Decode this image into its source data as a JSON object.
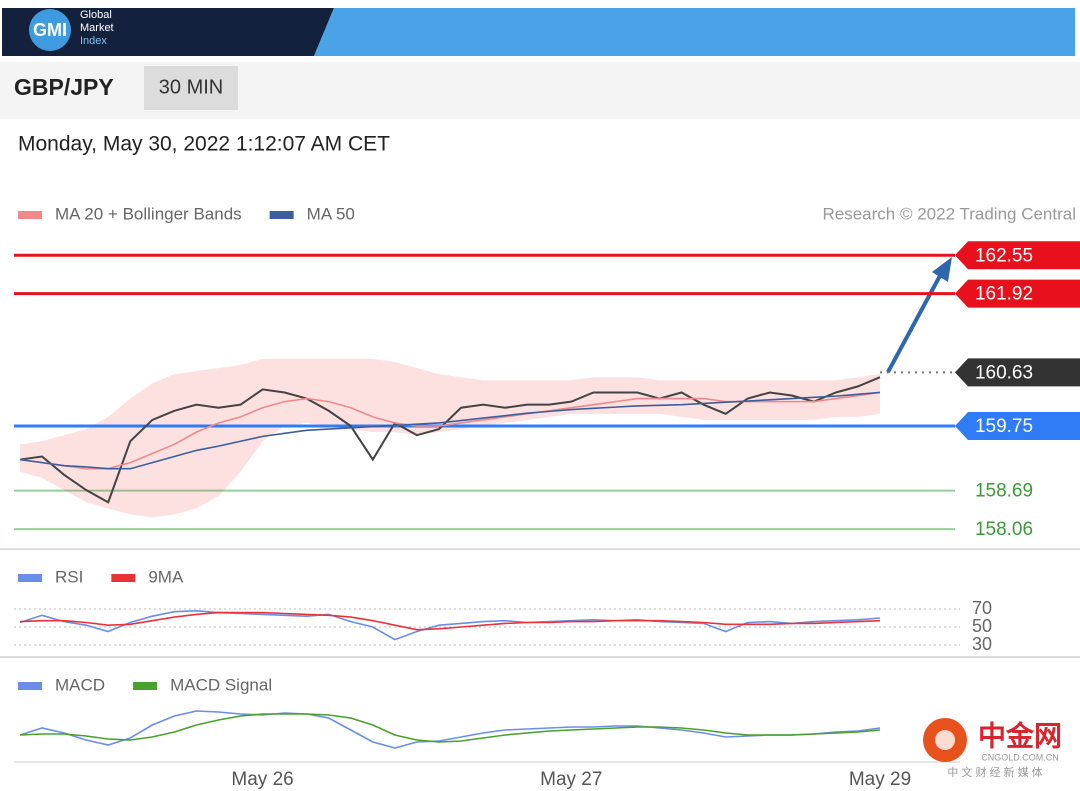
{
  "header": {
    "logo": "GMI",
    "brand": [
      "Global",
      "Market",
      "Index"
    ]
  },
  "toolbar": {
    "symbol": "GBP/JPY",
    "interval": "30 MIN"
  },
  "timestamp": "Monday, May 30, 2022 1:12:07 AM CET",
  "watermark": {
    "name": "中金网",
    "site": "CNGOLD.COM.CN",
    "tagline": "中 文 财 经 新 媒 体"
  },
  "chart_data": [
    {
      "type": "line",
      "source": "Research © 2022 Trading Central",
      "ylim": [
        157.75,
        162.8
      ],
      "price": {
        "color": "#444444",
        "values": [
          159.2,
          159.25,
          158.95,
          158.7,
          158.5,
          159.5,
          159.85,
          160.0,
          160.1,
          160.05,
          160.1,
          160.35,
          160.3,
          160.2,
          160.0,
          159.75,
          159.2,
          159.8,
          159.6,
          159.7,
          160.05,
          160.1,
          160.05,
          160.1,
          160.1,
          160.15,
          160.3,
          160.3,
          160.3,
          160.2,
          160.3,
          160.1,
          159.95,
          160.2,
          160.3,
          160.25,
          160.15,
          160.3,
          160.4,
          160.55
        ]
      },
      "series": [
        {
          "name": "MA 20 + Bollinger Bands",
          "color": "#f08a8a",
          "band_color": "#fde0e0",
          "values": [
            159.2,
            159.15,
            159.1,
            159.05,
            159.05,
            159.15,
            159.3,
            159.45,
            159.65,
            159.8,
            159.9,
            160.05,
            160.15,
            160.2,
            160.15,
            160.05,
            159.9,
            159.8,
            159.75,
            159.75,
            159.8,
            159.85,
            159.9,
            159.95,
            160.0,
            160.05,
            160.1,
            160.15,
            160.2,
            160.2,
            160.2,
            160.2,
            160.15,
            160.15,
            160.15,
            160.15,
            160.15,
            160.2,
            160.25,
            160.3
          ],
          "upper": [
            159.45,
            159.5,
            159.6,
            159.7,
            159.9,
            160.2,
            160.45,
            160.6,
            160.65,
            160.7,
            160.75,
            160.85,
            160.85,
            160.85,
            160.85,
            160.85,
            160.85,
            160.8,
            160.7,
            160.6,
            160.55,
            160.5,
            160.5,
            160.5,
            160.5,
            160.5,
            160.55,
            160.55,
            160.55,
            160.5,
            160.5,
            160.5,
            160.5,
            160.5,
            160.5,
            160.5,
            160.5,
            160.5,
            160.55,
            160.6
          ],
          "lower": [
            159.0,
            158.9,
            158.7,
            158.5,
            158.4,
            158.3,
            158.25,
            158.3,
            158.4,
            158.6,
            159.0,
            159.5,
            159.75,
            159.8,
            159.75,
            159.7,
            159.65,
            159.65,
            159.6,
            159.65,
            159.7,
            159.75,
            159.8,
            159.85,
            159.9,
            159.95,
            159.95,
            159.95,
            159.95,
            159.95,
            159.9,
            159.85,
            159.85,
            159.85,
            159.85,
            159.85,
            159.85,
            159.9,
            159.9,
            159.95
          ]
        },
        {
          "name": "MA 50",
          "color": "#3b5f9e",
          "values": [
            159.2,
            159.15,
            159.1,
            159.08,
            159.05,
            159.05,
            159.15,
            159.25,
            159.35,
            159.42,
            159.5,
            159.58,
            159.63,
            159.68,
            159.7,
            159.72,
            159.74,
            159.76,
            159.78,
            159.8,
            159.84,
            159.88,
            159.92,
            159.96,
            159.99,
            160.02,
            160.04,
            160.06,
            160.08,
            160.09,
            160.1,
            160.12,
            160.14,
            160.16,
            160.18,
            160.2,
            160.22,
            160.24,
            160.27,
            160.3
          ]
        }
      ],
      "levels": [
        {
          "value": 162.55,
          "color": "#e8101c",
          "kind": "box",
          "line": "solid"
        },
        {
          "value": 161.92,
          "color": "#e8101c",
          "kind": "box",
          "line": "solid"
        },
        {
          "value": 160.63,
          "color": "#333333",
          "kind": "box",
          "line": "dotted"
        },
        {
          "value": 159.75,
          "color": "#2f7cf6",
          "kind": "box",
          "line": "solid"
        },
        {
          "value": 158.69,
          "color": "#3a9a3a",
          "kind": "text",
          "line": "solid"
        },
        {
          "value": 158.06,
          "color": "#3a9a3a",
          "kind": "text",
          "line": "solid"
        }
      ]
    },
    {
      "type": "line",
      "ylim": [
        23,
        80
      ],
      "yticks": [
        70,
        50,
        30
      ],
      "grid": true,
      "series": [
        {
          "name": "RSI",
          "color": "#6a8ee8",
          "values": [
            55,
            63,
            56,
            52,
            45,
            55,
            62,
            67,
            68,
            66,
            65,
            64,
            63,
            62,
            64,
            56,
            50,
            36,
            45,
            52,
            54,
            56,
            57,
            55,
            56,
            57,
            58,
            57,
            58,
            56,
            55,
            54,
            45,
            55,
            56,
            54,
            56,
            57,
            58,
            60
          ]
        },
        {
          "name": "9MA",
          "color": "#e8333a",
          "values": [
            56,
            57,
            57,
            55,
            52,
            53,
            57,
            61,
            64,
            66,
            66,
            66,
            65,
            64,
            63,
            61,
            57,
            52,
            47,
            48,
            50,
            52,
            54,
            55,
            55,
            56,
            56,
            57,
            57,
            57,
            56,
            55,
            53,
            53,
            53,
            54,
            54,
            55,
            56,
            57
          ]
        }
      ]
    },
    {
      "type": "line",
      "ylim": [
        -0.25,
        0.25
      ],
      "categories": [
        null,
        null,
        null,
        null,
        null,
        null,
        null,
        null,
        null,
        null,
        null,
        "May 26",
        null,
        null,
        null,
        null,
        null,
        null,
        null,
        null,
        null,
        null,
        null,
        null,
        null,
        "May 27",
        null,
        null,
        null,
        null,
        null,
        null,
        null,
        null,
        null,
        null,
        null,
        null,
        null,
        "May 29"
      ],
      "series": [
        {
          "name": "MACD",
          "color": "#6a8ee8",
          "values": [
            -0.05,
            0.02,
            -0.03,
            -0.1,
            -0.15,
            -0.08,
            0.05,
            0.14,
            0.19,
            0.18,
            0.16,
            0.15,
            0.17,
            0.16,
            0.12,
            0.0,
            -0.12,
            -0.18,
            -0.12,
            -0.11,
            -0.07,
            -0.03,
            0.0,
            0.01,
            0.02,
            0.03,
            0.03,
            0.04,
            0.04,
            0.02,
            0.0,
            -0.03,
            -0.07,
            -0.06,
            -0.05,
            -0.05,
            -0.04,
            -0.02,
            -0.01,
            0.02
          ]
        },
        {
          "name": "MACD Signal",
          "color": "#4aa02c",
          "values": [
            -0.05,
            -0.04,
            -0.04,
            -0.06,
            -0.09,
            -0.1,
            -0.07,
            -0.02,
            0.05,
            0.1,
            0.14,
            0.16,
            0.16,
            0.16,
            0.15,
            0.12,
            0.05,
            -0.05,
            -0.1,
            -0.12,
            -0.11,
            -0.08,
            -0.05,
            -0.03,
            -0.01,
            0.0,
            0.01,
            0.02,
            0.03,
            0.03,
            0.02,
            0.0,
            -0.03,
            -0.05,
            -0.05,
            -0.05,
            -0.04,
            -0.03,
            -0.02,
            0.0
          ]
        }
      ]
    }
  ]
}
